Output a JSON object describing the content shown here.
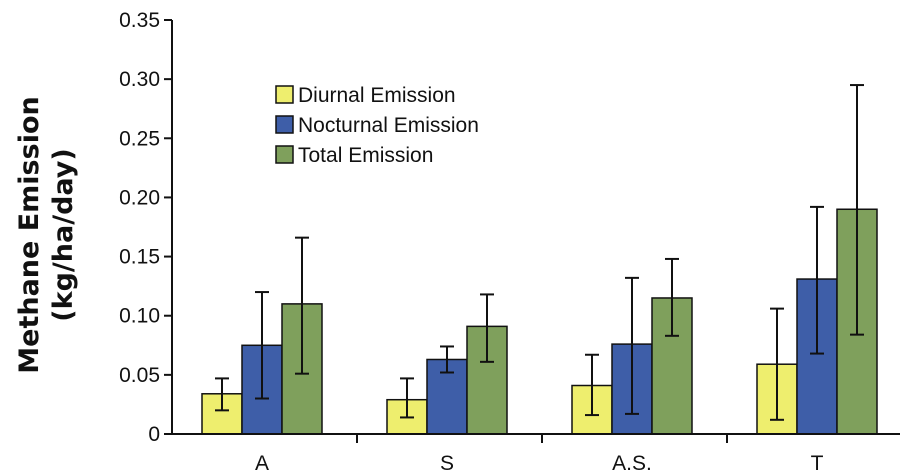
{
  "chart_data": {
    "type": "bar",
    "title": "",
    "xlabel": "",
    "ylabel_lines": [
      "Methane Emission",
      "(kg/ha/day)"
    ],
    "categories": [
      "A",
      "S",
      "A.S.",
      "T"
    ],
    "ylim": [
      0,
      0.35
    ],
    "yticks": [
      "0",
      "0.05",
      "0.10",
      "0.15",
      "0.20",
      "0.25",
      "0.30",
      "0.35"
    ],
    "ytick_values": [
      0,
      0.05,
      0.1,
      0.15,
      0.2,
      0.25,
      0.3,
      0.35
    ],
    "grid": false,
    "legend_position": "top-left",
    "series": [
      {
        "name": "Diurnal Emission",
        "color": "#eeee6e",
        "values": [
          0.034,
          0.029,
          0.041,
          0.059
        ],
        "err_low": [
          0.02,
          0.014,
          0.016,
          0.012
        ],
        "err_high": [
          0.047,
          0.047,
          0.067,
          0.106
        ]
      },
      {
        "name": "Nocturnal Emission",
        "color": "#3e5ea8",
        "values": [
          0.075,
          0.063,
          0.076,
          0.131
        ],
        "err_low": [
          0.03,
          0.052,
          0.017,
          0.068
        ],
        "err_high": [
          0.12,
          0.074,
          0.132,
          0.192
        ]
      },
      {
        "name": "Total Emission",
        "color": "#7fa05c",
        "values": [
          0.11,
          0.091,
          0.115,
          0.19
        ],
        "err_low": [
          0.051,
          0.061,
          0.083,
          0.084
        ],
        "err_high": [
          0.166,
          0.118,
          0.148,
          0.295
        ]
      }
    ]
  }
}
